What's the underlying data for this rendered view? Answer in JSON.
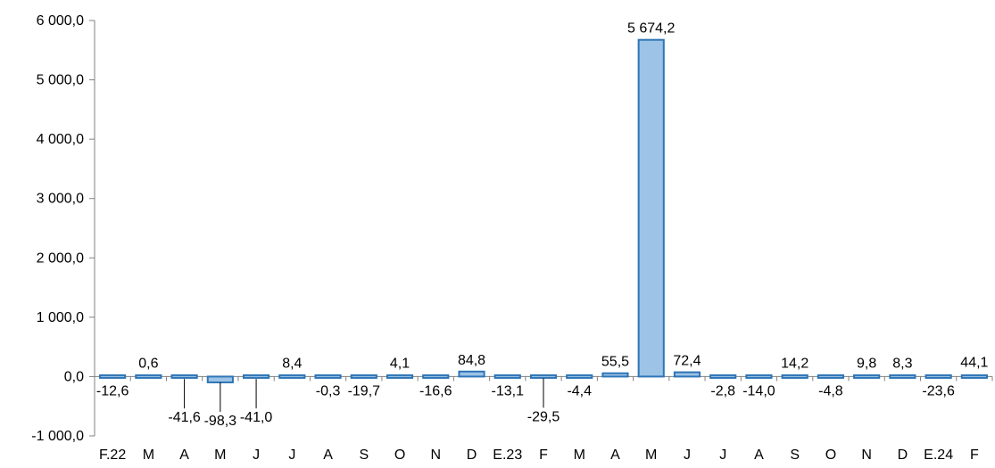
{
  "chart_data": {
    "type": "bar",
    "categories": [
      "F.22",
      "M",
      "A",
      "M",
      "J",
      "J",
      "A",
      "S",
      "O",
      "N",
      "D",
      "E.23",
      "F",
      "M",
      "A",
      "M",
      "J",
      "J",
      "A",
      "S",
      "O",
      "N",
      "D",
      "E.24",
      "F"
    ],
    "values": [
      -12.6,
      0.6,
      -41.6,
      -98.3,
      -41.0,
      8.4,
      -0.3,
      -19.7,
      4.1,
      -16.6,
      84.8,
      -13.1,
      -29.5,
      -4.4,
      55.5,
      5674.2,
      72.4,
      -2.8,
      -14.0,
      14.2,
      -4.8,
      9.8,
      8.3,
      -23.6,
      44.1
    ],
    "value_labels": [
      "-12,6",
      "0,6",
      "-41,6",
      "-98,3",
      "-41,0",
      "8,4",
      "-0,3",
      "-19,7",
      "4,1",
      "-16,6",
      "84,8",
      "-13,1",
      "-29,5",
      "-4,4",
      "55,5",
      "5 674,2",
      "72,4",
      "-2,8",
      "-14,0",
      "14,2",
      "-4,8",
      "9,8",
      "8,3",
      "-23,6",
      "44,1"
    ],
    "ylim": [
      -1000,
      6000
    ],
    "yticks": [
      -1000,
      0,
      1000,
      2000,
      3000,
      4000,
      5000,
      6000
    ],
    "ytick_labels": [
      "-1 000,0",
      "0,0",
      "1 000,0",
      "2 000,0",
      "3 000,0",
      "4 000,0",
      "5 000,0",
      "6 000,0"
    ],
    "grid": false,
    "legend": "none",
    "colors": {
      "bar_fill": "#9DC3E6",
      "bar_stroke": "#2E75B6",
      "axis": "#808080"
    }
  }
}
